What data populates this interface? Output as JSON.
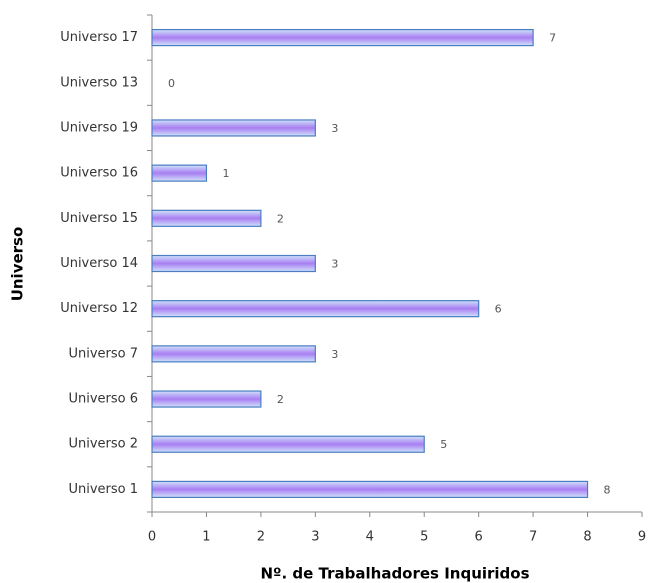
{
  "chart_data": {
    "type": "bar",
    "orientation": "horizontal",
    "x_label": "Nº. de Trabalhadores Inquiridos",
    "y_label": "Universo",
    "categories": [
      "Universo 17",
      "Universo 13",
      "Universo 19",
      "Universo 16",
      "Universo 15",
      "Universo 14",
      "Universo 12",
      "Universo 7",
      "Universo 6",
      "Universo 2",
      "Universo 1"
    ],
    "values": [
      7,
      0,
      3,
      1,
      2,
      3,
      6,
      3,
      2,
      5,
      8
    ],
    "color": "#a97ef2",
    "edge_color": "#4a7ec0",
    "xlim": [
      0,
      9
    ],
    "xticks": [
      0,
      1,
      2,
      3,
      4,
      5,
      6,
      7,
      8,
      9
    ],
    "grid": false
  }
}
